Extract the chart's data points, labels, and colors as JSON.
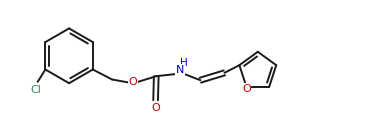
{
  "bg_color": "#ffffff",
  "line_color": "#1a1a1a",
  "atom_colors": {
    "O": "#cc0000",
    "N": "#0000cc",
    "Cl": "#2e8b57"
  },
  "line_width": 1.4,
  "font_size_atom": 8.0,
  "figsize": [
    3.82,
    1.35
  ],
  "dpi": 100,
  "xlim": [
    0,
    10.5
  ],
  "ylim": [
    -0.5,
    3.5
  ]
}
